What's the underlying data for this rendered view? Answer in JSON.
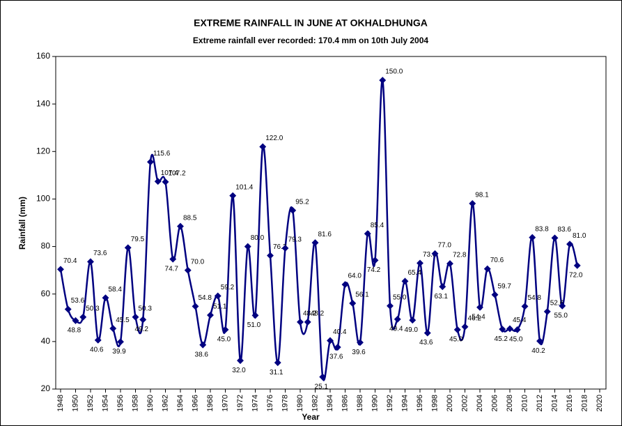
{
  "chart_data": {
    "type": "line",
    "title": "EXTREME RAINFALL  IN JUNE AT OKHALDHUNGA",
    "subtitle": "Extreme rainfall ever recorded: 170.4 mm on 10th July 2004",
    "x_label": "Year",
    "y_label": "Rainfall (mm)",
    "x": [
      1948,
      1949,
      1950,
      1951,
      1952,
      1953,
      1954,
      1955,
      1956,
      1957,
      1958,
      1959,
      1960,
      1961,
      1962,
      1963,
      1964,
      1965,
      1966,
      1967,
      1968,
      1969,
      1970,
      1971,
      1972,
      1973,
      1974,
      1975,
      1976,
      1977,
      1978,
      1979,
      1980,
      1981,
      1982,
      1983,
      1984,
      1985,
      1986,
      1987,
      1988,
      1989,
      1990,
      1991,
      1992,
      1993,
      1994,
      1995,
      1996,
      1997,
      1998,
      1999,
      2000,
      2001,
      2002,
      2003,
      2004,
      2005,
      2006,
      2007,
      2008,
      2009,
      2010,
      2011,
      2012,
      2013,
      2014,
      2015,
      2016,
      2017
    ],
    "series": [
      {
        "name": "Rainfall",
        "color": "#000080",
        "values": [
          70.4,
          53.6,
          48.8,
          50.3,
          73.6,
          40.6,
          58.4,
          45.5,
          39.9,
          79.5,
          50.3,
          49.2,
          115.6,
          107.4,
          107.2,
          74.7,
          88.5,
          70.0,
          54.8,
          38.6,
          51.1,
          59.2,
          45.0,
          101.4,
          32.0,
          80.0,
          51.0,
          122.0,
          76.2,
          31.1,
          79.3,
          95.2,
          48.2,
          48.2,
          81.6,
          25.1,
          40.4,
          37.6,
          64.0,
          56.1,
          39.6,
          85.4,
          74.2,
          150.0,
          55.0,
          49.4,
          65.4,
          49.0,
          73.0,
          43.6,
          77.0,
          63.1,
          72.8,
          45.0,
          46.2,
          98.1,
          54.4,
          70.6,
          59.7,
          45.2,
          45.4,
          45.0,
          54.8,
          83.8,
          40.2,
          52.6,
          83.6,
          55.0,
          81.0,
          72.0
        ],
        "value_labels": [
          "70.4",
          "53.6",
          "48.8",
          "50.3",
          "73.6",
          "40.6",
          "58.4",
          "45.5",
          "39.9",
          "79.5",
          "50.3",
          "49.2",
          "115.6",
          "107.4",
          "107.2",
          "74.7",
          "88.5",
          "70.0",
          "54.8",
          "38.6",
          "51.1",
          "59.2",
          "45.0",
          "101.4",
          "32.0",
          "80.0",
          "51.0",
          "122.0",
          "76.2",
          "31.1",
          "79.3",
          "95.2",
          "48.2",
          "48.2",
          "81.6",
          "25.1",
          "40.4",
          "37.6",
          "64.0",
          "56.1",
          "39.6",
          "85.4",
          "74.2",
          "150.0",
          "55.0",
          "49.4",
          "65.4",
          "49.0",
          "73.0",
          "43.6",
          "77.0",
          "63.1",
          "72.8",
          "45.0",
          "46.2",
          "98.1",
          "54.4",
          "70.6",
          "59.7",
          "45.2",
          "45.4",
          "45.0",
          "54.8",
          "83.8",
          "40.2",
          "52.6",
          "83.6",
          "55.0",
          "81.0",
          "72.0"
        ]
      }
    ],
    "xlim": [
      1948,
      2020
    ],
    "xticks": [
      1948,
      1950,
      1952,
      1954,
      1956,
      1958,
      1960,
      1962,
      1964,
      1966,
      1968,
      1970,
      1972,
      1974,
      1976,
      1978,
      1980,
      1982,
      1984,
      1986,
      1988,
      1990,
      1992,
      1994,
      1996,
      1998,
      2000,
      2002,
      2004,
      2006,
      2008,
      2010,
      2012,
      2014,
      2016,
      2018,
      2020
    ],
    "ylim": [
      20,
      160
    ],
    "yticks": [
      20,
      40,
      60,
      80,
      100,
      120,
      140,
      160
    ]
  }
}
